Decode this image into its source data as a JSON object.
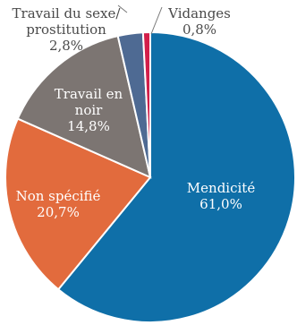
{
  "chart_data": {
    "type": "pie",
    "start_angle_deg": 0,
    "direction": "clockwise",
    "slices": [
      {
        "label": "Mendicité",
        "value": 61.0,
        "display": "61,0%",
        "color": "#0F6FA8"
      },
      {
        "label": "Non spécifié",
        "value": 20.7,
        "display": "20,7%",
        "color": "#E26B3D"
      },
      {
        "label": "Travail en noir",
        "value": 14.8,
        "display": "14,8%",
        "color": "#7C7572"
      },
      {
        "label": "Travail du sexe/ prostitution",
        "value": 2.8,
        "display": "2,8%",
        "color": "#4E6A93"
      },
      {
        "label": "Vidanges",
        "value": 0.8,
        "display": "0,8%",
        "color": "#D21F4A"
      }
    ]
  },
  "labels": {
    "mendicite": {
      "line1": "Mendicité",
      "line2": "61,0%"
    },
    "non_specifie": {
      "line1": "Non spécifié",
      "line2": "20,7%"
    },
    "travail_noir": {
      "line1": "Travail en",
      "line2": "noir",
      "line3": "14,8%"
    },
    "travail_sexe": {
      "line1": "Travail du sexe/",
      "line2": "prostitution",
      "line3": "2,8%"
    },
    "vidanges": {
      "line1": "Vidanges",
      "line2": "0,8%"
    }
  }
}
